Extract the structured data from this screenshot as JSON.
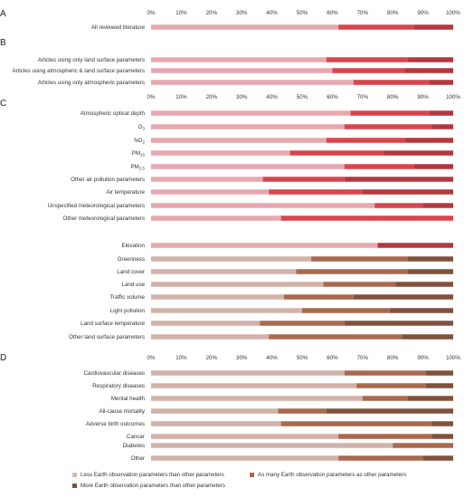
{
  "colors": {
    "less": "#e6a8ae",
    "as_many": "#d9444c",
    "more": "#b3383e",
    "less_alt": "#d1b2a9",
    "as_many_alt": "#a8694e",
    "more_alt": "#80513d",
    "row_bg": "#f4dadd"
  },
  "legend": [
    {
      "label": "Less Earth observation parameters than other parameters",
      "color": "#d8b7ae"
    },
    {
      "label": "As many Earth observation parameters as other parameters",
      "color": "#a8694e"
    },
    {
      "label": "More Earth observation parameters than other parameters",
      "color": "#80513d"
    }
  ],
  "chart_data": [
    {
      "type": "bar",
      "orientation": "horizontal",
      "stacked": true,
      "panel": "A",
      "tick_labels": [
        "0%",
        "10%",
        "20%",
        "30%",
        "40%",
        "50%",
        "60%",
        "70%",
        "80%",
        "90%",
        "100%"
      ],
      "xlim": [
        0,
        100
      ],
      "categories": [
        "All reviewed literature"
      ],
      "series": [
        {
          "name": "Less Earth observation parameters than other parameters",
          "values": [
            62
          ]
        },
        {
          "name": "As many Earth observation parameters as other parameters",
          "values": [
            25
          ]
        },
        {
          "name": "More Earth observation parameters than other parameters",
          "values": [
            13
          ]
        }
      ]
    },
    {
      "type": "bar",
      "orientation": "horizontal",
      "stacked": true,
      "panel": "B",
      "tick_labels": [
        "0%",
        "10%",
        "20%",
        "30%",
        "40%",
        "50%",
        "60%",
        "70%",
        "80%",
        "90%",
        "100%"
      ],
      "xlim": [
        0,
        100
      ],
      "categories": [
        "Articles using only land surface parameters",
        "Articles using atmospheric & land surface parameters",
        "Articles using only atmospheric parameters"
      ],
      "series": [
        {
          "name": "Less Earth observation parameters than other parameters",
          "values": [
            58,
            60,
            67
          ]
        },
        {
          "name": "As many Earth observation parameters as other parameters",
          "values": [
            27,
            24,
            25
          ]
        },
        {
          "name": "More Earth observation parameters than other parameters",
          "values": [
            15,
            16,
            8
          ]
        }
      ]
    },
    {
      "type": "bar",
      "orientation": "horizontal",
      "stacked": true,
      "panel": "C",
      "tick_labels": [
        "0%",
        "10%",
        "20%",
        "30%",
        "40%",
        "50%",
        "60%",
        "70%",
        "80%",
        "90%",
        "100%"
      ],
      "xlim": [
        0,
        100
      ],
      "categories": [
        "Atmospheric optical depth",
        "O3",
        "NO2",
        "PM10",
        "PM2.5",
        "Other air pollution parameters",
        "Air temperature",
        "Unspecified meteorological parameters",
        "Other meteorological parameters",
        "",
        "Elevation",
        "Greenness",
        "Land cover",
        "Land use",
        "Traffic volume",
        "Light pollution",
        "Land surface temperature",
        "Other land surface parameters"
      ],
      "series": [
        {
          "name": "Less Earth observation parameters than other parameters",
          "values": [
            66,
            64,
            58,
            46,
            64,
            37,
            39,
            74,
            43,
            0,
            75,
            53,
            48,
            57,
            44,
            50,
            36,
            39
          ]
        },
        {
          "name": "As many Earth observation parameters as other parameters",
          "values": [
            26,
            29,
            26,
            31,
            23,
            27,
            31,
            16,
            57,
            0,
            0,
            32,
            37,
            24,
            23,
            29,
            28,
            44
          ]
        },
        {
          "name": "More Earth observation parameters than other parameters",
          "values": [
            8,
            7,
            16,
            23,
            13,
            36,
            30,
            10,
            0,
            0,
            25,
            15,
            15,
            19,
            33,
            21,
            36,
            17
          ]
        }
      ]
    },
    {
      "type": "bar",
      "orientation": "horizontal",
      "stacked": true,
      "panel": "D",
      "tick_labels": [
        "0%",
        "10%",
        "20%",
        "30%",
        "40%",
        "50%",
        "60%",
        "70%",
        "80%",
        "90%",
        "100%"
      ],
      "xlim": [
        0,
        100
      ],
      "categories": [
        "Cardiovascular diseases",
        "Respiratory diseases",
        "Mental health",
        "All-cause mortality",
        "Adverse birth outcomes",
        "Cancer",
        "Diabetes",
        "Other"
      ],
      "series": [
        {
          "name": "Less Earth observation parameters than other parameters",
          "values": [
            64,
            68,
            70,
            42,
            43,
            62,
            80,
            62
          ]
        },
        {
          "name": "As many Earth observation parameters as other parameters",
          "values": [
            27,
            23,
            15,
            16,
            50,
            31,
            20,
            28
          ]
        },
        {
          "name": "More Earth observation parameters than other parameters",
          "values": [
            9,
            9,
            15,
            42,
            7,
            7,
            0,
            10
          ]
        }
      ]
    }
  ]
}
